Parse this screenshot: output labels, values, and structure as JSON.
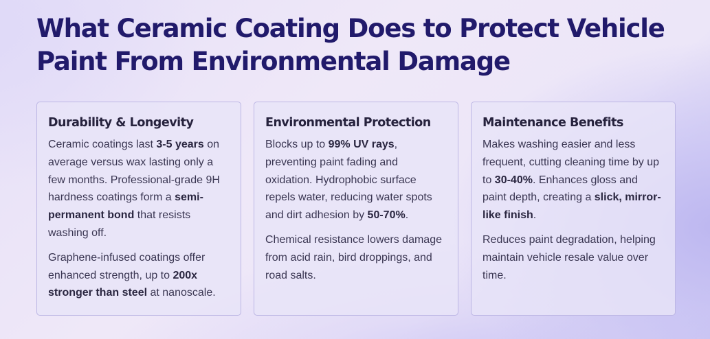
{
  "page": {
    "title": "What Ceramic Coating Does to Protect Vehicle Paint From Environmental Damage"
  },
  "colors": {
    "title": "#211a6b",
    "card_background": "#e8e4f8",
    "card_border": "#bcb6e4",
    "body_text": "#3a3652"
  },
  "cards": [
    {
      "heading": "Durability & Longevity",
      "paragraphs": [
        [
          {
            "t": "Ceramic coatings last "
          },
          {
            "t": "3-5 years",
            "b": true
          },
          {
            "t": " on average versus wax lasting only a few months. Professional-grade 9H hardness coatings form a "
          },
          {
            "t": "semi-permanent bond",
            "b": true
          },
          {
            "t": " that resists washing off."
          }
        ],
        [
          {
            "t": "Graphene-infused coatings offer enhanced strength, up to "
          },
          {
            "t": "200x stronger than steel",
            "b": true
          },
          {
            "t": " at nanoscale."
          }
        ]
      ]
    },
    {
      "heading": "Environmental Protection",
      "paragraphs": [
        [
          {
            "t": "Blocks up to "
          },
          {
            "t": "99% UV rays",
            "b": true
          },
          {
            "t": ", preventing paint fading and oxidation. Hydrophobic surface repels water, reducing water spots and dirt adhesion by "
          },
          {
            "t": "50-70%",
            "b": true
          },
          {
            "t": "."
          }
        ],
        [
          {
            "t": "Chemical resistance lowers damage from acid rain, bird droppings, and road salts."
          }
        ]
      ]
    },
    {
      "heading": "Maintenance Benefits",
      "paragraphs": [
        [
          {
            "t": "Makes washing easier and less frequent, cutting cleaning time by up to "
          },
          {
            "t": "30-40%",
            "b": true
          },
          {
            "t": ". Enhances gloss and paint depth, creating a "
          },
          {
            "t": "slick, mirror-like finish",
            "b": true
          },
          {
            "t": "."
          }
        ],
        [
          {
            "t": "Reduces paint degradation, helping maintain vehicle resale value over time."
          }
        ]
      ]
    }
  ]
}
